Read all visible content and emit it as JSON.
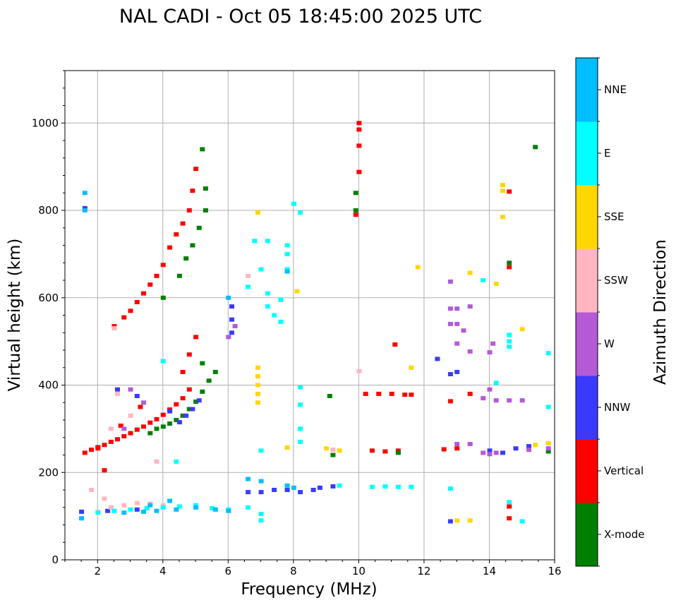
{
  "chart_data": {
    "type": "scatter",
    "title": "NAL CADI - Oct 05 18:45:00 2025 UTC",
    "xlabel": "Frequency (MHz)",
    "ylabel": "Virtual height (km)",
    "xlim": [
      1,
      16
    ],
    "ylim": [
      0,
      1120
    ],
    "xticks": [
      2,
      4,
      6,
      8,
      10,
      12,
      14,
      16
    ],
    "yticks": [
      0,
      200,
      400,
      600,
      800,
      1000
    ],
    "grid": true,
    "colorbar": {
      "label": "Azimuth Direction",
      "categories": [
        {
          "name": "X-mode",
          "color": "#008000"
        },
        {
          "name": "Vertical",
          "color": "#ff0000"
        },
        {
          "name": "NNW",
          "color": "#3a3aff"
        },
        {
          "name": "W",
          "color": "#b45ad6"
        },
        {
          "name": "SSW",
          "color": "#ffb6c1"
        },
        {
          "name": "SSE",
          "color": "#ffd700"
        },
        {
          "name": "E",
          "color": "#00ffff"
        },
        {
          "name": "NNE",
          "color": "#00bfff"
        }
      ]
    },
    "series": [
      {
        "name": "Vertical",
        "points": [
          [
            1.6,
            245
          ],
          [
            1.8,
            252
          ],
          [
            2.0,
            258
          ],
          [
            2.2,
            263
          ],
          [
            2.4,
            270
          ],
          [
            2.6,
            276
          ],
          [
            2.8,
            283
          ],
          [
            3.0,
            290
          ],
          [
            3.2,
            298
          ],
          [
            3.4,
            305
          ],
          [
            3.6,
            314
          ],
          [
            3.8,
            322
          ],
          [
            4.0,
            332
          ],
          [
            4.2,
            344
          ],
          [
            4.4,
            356
          ],
          [
            4.6,
            370
          ],
          [
            4.8,
            390
          ],
          [
            2.5,
            535
          ],
          [
            2.8,
            555
          ],
          [
            3.0,
            570
          ],
          [
            3.2,
            590
          ],
          [
            3.4,
            610
          ],
          [
            3.6,
            630
          ],
          [
            3.8,
            650
          ],
          [
            4.0,
            675
          ],
          [
            4.2,
            715
          ],
          [
            4.4,
            745
          ],
          [
            4.6,
            770
          ],
          [
            4.8,
            800
          ],
          [
            4.9,
            845
          ],
          [
            5.0,
            895
          ],
          [
            4.6,
            430
          ],
          [
            4.8,
            470
          ],
          [
            5.0,
            510
          ],
          [
            10.0,
            1000
          ],
          [
            10.0,
            985
          ],
          [
            10.0,
            948
          ],
          [
            10.0,
            888
          ],
          [
            9.9,
            790
          ],
          [
            10.2,
            380
          ],
          [
            10.6,
            380
          ],
          [
            11.0,
            380
          ],
          [
            11.4,
            378
          ],
          [
            11.6,
            378
          ],
          [
            10.4,
            250
          ],
          [
            10.8,
            248
          ],
          [
            11.2,
            250
          ],
          [
            12.6,
            253
          ],
          [
            13.0,
            255
          ],
          [
            12.8,
            363
          ],
          [
            13.4,
            380
          ],
          [
            14.6,
            843
          ],
          [
            14.6,
            670
          ],
          [
            14.6,
            122
          ],
          [
            14.6,
            95
          ],
          [
            11.1,
            493
          ],
          [
            2.7,
            307
          ],
          [
            3.3,
            350
          ],
          [
            2.2,
            205
          ],
          [
            2.0,
            255
          ]
        ]
      },
      {
        "name": "X-mode",
        "points": [
          [
            3.6,
            290
          ],
          [
            3.8,
            300
          ],
          [
            4.0,
            305
          ],
          [
            4.2,
            312
          ],
          [
            4.4,
            320
          ],
          [
            4.6,
            330
          ],
          [
            4.8,
            345
          ],
          [
            5.0,
            362
          ],
          [
            5.2,
            385
          ],
          [
            5.4,
            410
          ],
          [
            5.6,
            430
          ],
          [
            4.5,
            650
          ],
          [
            4.7,
            690
          ],
          [
            4.9,
            720
          ],
          [
            5.1,
            760
          ],
          [
            5.3,
            800
          ],
          [
            5.3,
            850
          ],
          [
            5.2,
            940
          ],
          [
            9.9,
            840
          ],
          [
            9.9,
            800
          ],
          [
            9.1,
            375
          ],
          [
            9.2,
            240
          ],
          [
            11.2,
            245
          ],
          [
            14.6,
            680
          ],
          [
            15.4,
            945
          ],
          [
            15.8,
            248
          ],
          [
            4.0,
            600
          ],
          [
            5.2,
            450
          ]
        ]
      },
      {
        "name": "NNW",
        "points": [
          [
            4.5,
            315
          ],
          [
            4.7,
            330
          ],
          [
            4.9,
            345
          ],
          [
            5.1,
            365
          ],
          [
            6.1,
            520
          ],
          [
            6.1,
            550
          ],
          [
            6.1,
            580
          ],
          [
            6.6,
            155
          ],
          [
            7.0,
            155
          ],
          [
            7.4,
            160
          ],
          [
            7.8,
            160
          ],
          [
            8.2,
            155
          ],
          [
            8.6,
            160
          ],
          [
            8.8,
            165
          ],
          [
            9.2,
            168
          ],
          [
            2.6,
            390
          ],
          [
            3.2,
            375
          ],
          [
            12.8,
            425
          ],
          [
            13.0,
            430
          ],
          [
            12.4,
            460
          ],
          [
            12.8,
            88
          ],
          [
            14.0,
            250
          ],
          [
            14.4,
            245
          ],
          [
            14.8,
            255
          ],
          [
            15.2,
            260
          ],
          [
            4.2,
            340
          ],
          [
            1.6,
            805
          ],
          [
            1.5,
            110
          ],
          [
            2.3,
            112
          ],
          [
            3.2,
            115
          ]
        ]
      },
      {
        "name": "W",
        "points": [
          [
            6.0,
            510
          ],
          [
            6.2,
            535
          ],
          [
            12.8,
            575
          ],
          [
            13.0,
            575
          ],
          [
            12.8,
            540
          ],
          [
            13.0,
            540
          ],
          [
            13.2,
            525
          ],
          [
            13.4,
            580
          ],
          [
            12.8,
            637
          ],
          [
            13.0,
            495
          ],
          [
            13.4,
            477
          ],
          [
            13.0,
            265
          ],
          [
            13.4,
            265
          ],
          [
            13.8,
            245
          ],
          [
            14.0,
            242
          ],
          [
            14.2,
            245
          ],
          [
            13.8,
            370
          ],
          [
            14.2,
            365
          ],
          [
            14.6,
            365
          ],
          [
            15.0,
            365
          ],
          [
            14.0,
            390
          ],
          [
            14.0,
            475
          ],
          [
            14.1,
            495
          ],
          [
            15.2,
            252
          ],
          [
            15.8,
            255
          ],
          [
            3.0,
            390
          ],
          [
            3.4,
            360
          ],
          [
            2.8,
            300
          ]
        ]
      },
      {
        "name": "SSW",
        "points": [
          [
            2.0,
            110
          ],
          [
            2.4,
            120
          ],
          [
            2.8,
            125
          ],
          [
            3.2,
            130
          ],
          [
            3.6,
            128
          ],
          [
            4.0,
            125
          ],
          [
            2.5,
            530
          ],
          [
            6.6,
            650
          ],
          [
            2.6,
            380
          ],
          [
            3.0,
            330
          ],
          [
            9.2,
            252
          ],
          [
            10.0,
            432
          ],
          [
            2.4,
            300
          ],
          [
            3.8,
            225
          ],
          [
            1.8,
            160
          ],
          [
            2.2,
            140
          ]
        ]
      },
      {
        "name": "SSE",
        "points": [
          [
            6.9,
            440
          ],
          [
            6.9,
            420
          ],
          [
            6.9,
            400
          ],
          [
            6.9,
            380
          ],
          [
            6.9,
            360
          ],
          [
            7.8,
            257
          ],
          [
            8.1,
            615
          ],
          [
            6.9,
            795
          ],
          [
            11.8,
            670
          ],
          [
            13.4,
            657
          ],
          [
            14.2,
            632
          ],
          [
            14.4,
            858
          ],
          [
            14.4,
            845
          ],
          [
            14.4,
            785
          ],
          [
            15.0,
            528
          ],
          [
            15.4,
            263
          ],
          [
            15.8,
            267
          ],
          [
            11.6,
            440
          ],
          [
            13.4,
            90
          ],
          [
            13.0,
            90
          ],
          [
            9.0,
            255
          ],
          [
            9.4,
            250
          ]
        ]
      },
      {
        "name": "E",
        "points": [
          [
            2.0,
            108
          ],
          [
            2.5,
            112
          ],
          [
            3.0,
            115
          ],
          [
            3.5,
            118
          ],
          [
            4.0,
            120
          ],
          [
            4.5,
            122
          ],
          [
            5.0,
            125
          ],
          [
            5.5,
            118
          ],
          [
            6.0,
            115
          ],
          [
            6.6,
            120
          ],
          [
            7.0,
            105
          ],
          [
            7.0,
            90
          ],
          [
            6.6,
            625
          ],
          [
            7.0,
            665
          ],
          [
            7.2,
            610
          ],
          [
            7.2,
            580
          ],
          [
            7.4,
            560
          ],
          [
            7.6,
            595
          ],
          [
            7.6,
            545
          ],
          [
            7.8,
            720
          ],
          [
            7.8,
            700
          ],
          [
            7.8,
            665
          ],
          [
            8.0,
            815
          ],
          [
            8.2,
            795
          ],
          [
            7.2,
            730
          ],
          [
            8.2,
            395
          ],
          [
            8.2,
            355
          ],
          [
            8.2,
            300
          ],
          [
            8.2,
            270
          ],
          [
            10.4,
            167
          ],
          [
            10.8,
            168
          ],
          [
            11.2,
            167
          ],
          [
            11.6,
            167
          ],
          [
            9.4,
            170
          ],
          [
            13.8,
            640
          ],
          [
            14.2,
            405
          ],
          [
            14.6,
            515
          ],
          [
            14.6,
            500
          ],
          [
            14.6,
            488
          ],
          [
            14.6,
            132
          ],
          [
            15.0,
            88
          ],
          [
            15.8,
            473
          ],
          [
            15.8,
            350
          ],
          [
            12.8,
            163
          ],
          [
            6.8,
            730
          ],
          [
            4.4,
            225
          ],
          [
            4.0,
            455
          ],
          [
            7.0,
            250
          ]
        ]
      },
      {
        "name": "NNE",
        "points": [
          [
            1.6,
            840
          ],
          [
            1.6,
            800
          ],
          [
            1.5,
            95
          ],
          [
            2.8,
            108
          ],
          [
            3.4,
            110
          ],
          [
            3.8,
            112
          ],
          [
            4.4,
            115
          ],
          [
            5.0,
            120
          ],
          [
            5.6,
            115
          ],
          [
            6.0,
            112
          ],
          [
            6.6,
            185
          ],
          [
            7.0,
            180
          ],
          [
            7.8,
            660
          ],
          [
            7.8,
            170
          ],
          [
            8.0,
            165
          ],
          [
            6.0,
            600
          ],
          [
            3.6,
            125
          ],
          [
            4.2,
            135
          ]
        ]
      }
    ]
  }
}
